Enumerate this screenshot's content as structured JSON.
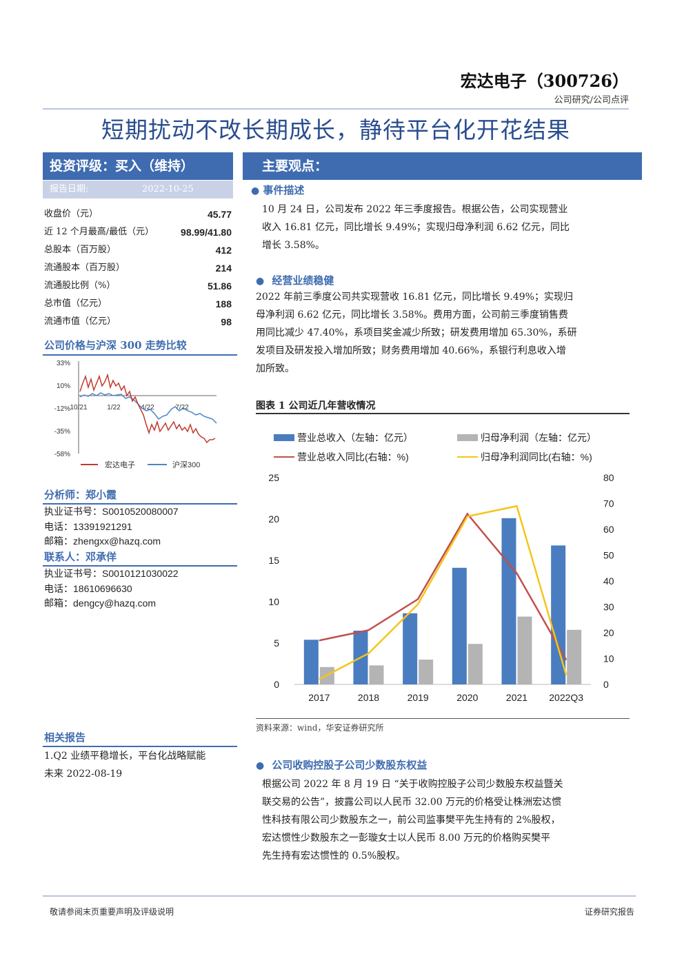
{
  "header": {
    "company": "宏达电子（300726）",
    "category": "公司研究/公司点评"
  },
  "title": "短期扰动不改长期成长，静待平台化开花结果",
  "rating": {
    "label": "投资评级：买入（维持）",
    "date_label": "报告日期:",
    "date": "2022-10-25"
  },
  "main_points_label": "主要观点：",
  "stats": [
    {
      "label": "收盘价（元）",
      "value": "45.77"
    },
    {
      "label": "近 12 个月最高/最低（元）",
      "value": "98.99/41.80"
    },
    {
      "label": "总股本（百万股）",
      "value": "412"
    },
    {
      "label": "流通股本（百万股）",
      "value": "214"
    },
    {
      "label": "流通股比例（%）",
      "value": "51.86"
    },
    {
      "label": "总市值（亿元）",
      "value": "188"
    },
    {
      "label": "流通市值（亿元）",
      "value": "98"
    }
  ],
  "price_chart": {
    "heading": "公司价格与沪深 300 走势比较",
    "yticks": [
      "33%",
      "10%",
      "-12%",
      "-35%",
      "-58%"
    ],
    "xticks": [
      "10/21",
      "1/22",
      "4/22",
      "7/22"
    ],
    "legend": [
      "宏达电子",
      "沪深300"
    ],
    "colors": {
      "stock": "#c0392b",
      "index": "#4a86c5"
    }
  },
  "analyst": {
    "heading": "分析师：郑小霞",
    "cert": "执业证书号：S0010520080007",
    "phone": "电话：13391921291",
    "email": "邮箱：zhengxx@hazq.com"
  },
  "contact": {
    "heading": "联系人：邓承佯",
    "cert": "执业证书号：S0010121030022",
    "phone": "电话：18610696630",
    "email": "邮箱：dengcy@hazq.com"
  },
  "related": {
    "heading": "相关报告",
    "items": [
      "1.Q2 业绩平稳增长，平台化战略赋能",
      "未来 2022-08-19"
    ]
  },
  "sections": {
    "event": {
      "heading": "事件描述",
      "lines": [
        "10 月 24 日，公司发布 2022 年三季度报告。根据公告，公司实现营业",
        "收入 16.81 亿元，同比增长 9.49%；实现归母净利润 6.62 亿元，同比",
        "增长 3.58%。"
      ]
    },
    "ops": {
      "heading": "经营业绩稳健",
      "lines": [
        "2022 年前三季度公司共实现营收 16.81 亿元，同比增长 9.49%；实现归",
        "母净利润 6.62 亿元，同比增长 3.58%。费用方面，公司前三季度销售费",
        "用同比减少 47.40%，系项目奖金减少所致；研发费用增加 65.30%，系研",
        "发项目及研发投入增加所致；财务费用增加 40.66%，系银行利息收入增",
        "加所致。"
      ]
    },
    "acq": {
      "heading": "公司收购控股子公司少数股东权益",
      "lines": [
        "根据公司 2022 年 8 月 19 日 “关于收购控股子公司少数股东权益暨关",
        "联交易的公告”，披露公司以人民币 32.00 万元的价格受让株洲宏达惯",
        "性科技有限公司少数股东之一，前公司监事樊平先生持有的 2%股权，",
        "宏达惯性少数股东之一彭璇女士以人民币 8.00 万元的价格购买樊平",
        "先生持有宏达惯性的 0.5%股权。"
      ]
    }
  },
  "figure": {
    "title": "图表 1 公司近几年营收情况",
    "source": "资料来源：wind，华安证券研究所"
  },
  "chart_data": {
    "type": "bar",
    "categories": [
      "2017",
      "2018",
      "2019",
      "2020",
      "2021",
      "2022Q3"
    ],
    "series": [
      {
        "name": "营业总收入（左轴：亿元）",
        "type": "bar",
        "axis": "left",
        "color": "#4a7cc0",
        "values": [
          5.4,
          6.5,
          8.6,
          14.1,
          20.1,
          16.8
        ]
      },
      {
        "name": "归母净利润（左轴：亿元）",
        "type": "bar",
        "axis": "left",
        "color": "#b4b4b4",
        "values": [
          2.1,
          2.3,
          3.0,
          4.9,
          8.2,
          6.6
        ]
      },
      {
        "name": "营业总收入同比(右轴：%)",
        "type": "line",
        "axis": "right",
        "color": "#c0504d",
        "values": [
          17,
          21,
          33,
          66,
          43,
          9.5
        ]
      },
      {
        "name": "归母净利润同比(右轴：%)",
        "type": "line",
        "axis": "right",
        "color": "#f5c518",
        "values": [
          2,
          12,
          31,
          65,
          69,
          3.6
        ]
      }
    ],
    "ylim_left": [
      0,
      25
    ],
    "yticks_left": [
      "0",
      "5",
      "10",
      "15",
      "20",
      "25"
    ],
    "ylim_right": [
      0,
      80
    ],
    "yticks_right": [
      "0",
      "10",
      "20",
      "30",
      "40",
      "50",
      "60",
      "70",
      "80"
    ]
  },
  "footer": {
    "left": "敬请参阅末页重要声明及评级说明",
    "right": "证券研究报告"
  }
}
